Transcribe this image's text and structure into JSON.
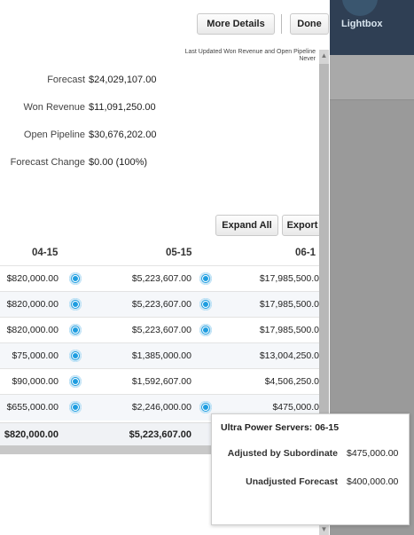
{
  "background_app": {
    "label": "Lightbox"
  },
  "toolbar": {
    "more_details": "More Details",
    "done": "Done",
    "expand_all": "Expand All",
    "export": "Export"
  },
  "last_updated": {
    "line1": "Last Updated Won Revenue and Open Pipeline",
    "line2": "Never"
  },
  "summary": [
    {
      "label": "Forecast",
      "value": "$24,029,107.00"
    },
    {
      "label": "Won Revenue",
      "value": "$11,091,250.00"
    },
    {
      "label": "Open Pipeline",
      "value": "$30,676,202.00"
    },
    {
      "label": "Forecast Change",
      "value": "$0.00 (100%)"
    }
  ],
  "columns": [
    "04-15",
    "05-15",
    "06-1"
  ],
  "rows": [
    {
      "c1": "$820,000.00",
      "c2": "$5,223,607.00",
      "c3": "$17,985,500.0",
      "d1": true,
      "d2": true
    },
    {
      "c1": "$820,000.00",
      "c2": "$5,223,607.00",
      "c3": "$17,985,500.0",
      "d1": true,
      "d2": true
    },
    {
      "c1": "$820,000.00",
      "c2": "$5,223,607.00",
      "c3": "$17,985,500.0",
      "d1": true,
      "d2": true
    },
    {
      "c1": "$75,000.00",
      "c2": "$1,385,000.00",
      "c3": "$13,004,250.0",
      "d1": true,
      "d2": false
    },
    {
      "c1": "$90,000.00",
      "c2": "$1,592,607.00",
      "c3": "$4,506,250.0",
      "d1": true,
      "d2": false
    },
    {
      "c1": "$655,000.00",
      "c2": "$2,246,000.00",
      "c3": "$475,000.0",
      "d1": true,
      "d2": true
    }
  ],
  "totals": {
    "c1": "$820,000.00",
    "c2": "$5,223,607.00"
  },
  "tooltip": {
    "title": "Ultra Power Servers: 06-15",
    "items": [
      {
        "label": "Adjusted by Subordinate",
        "value": "$475,000.00"
      },
      {
        "label": "Unadjusted Forecast",
        "value": "$400,000.00"
      }
    ]
  },
  "colors": {
    "accent_dot": "#1e9de0",
    "topbar": "#2f3f54",
    "overlay": "#9a9a9a"
  }
}
